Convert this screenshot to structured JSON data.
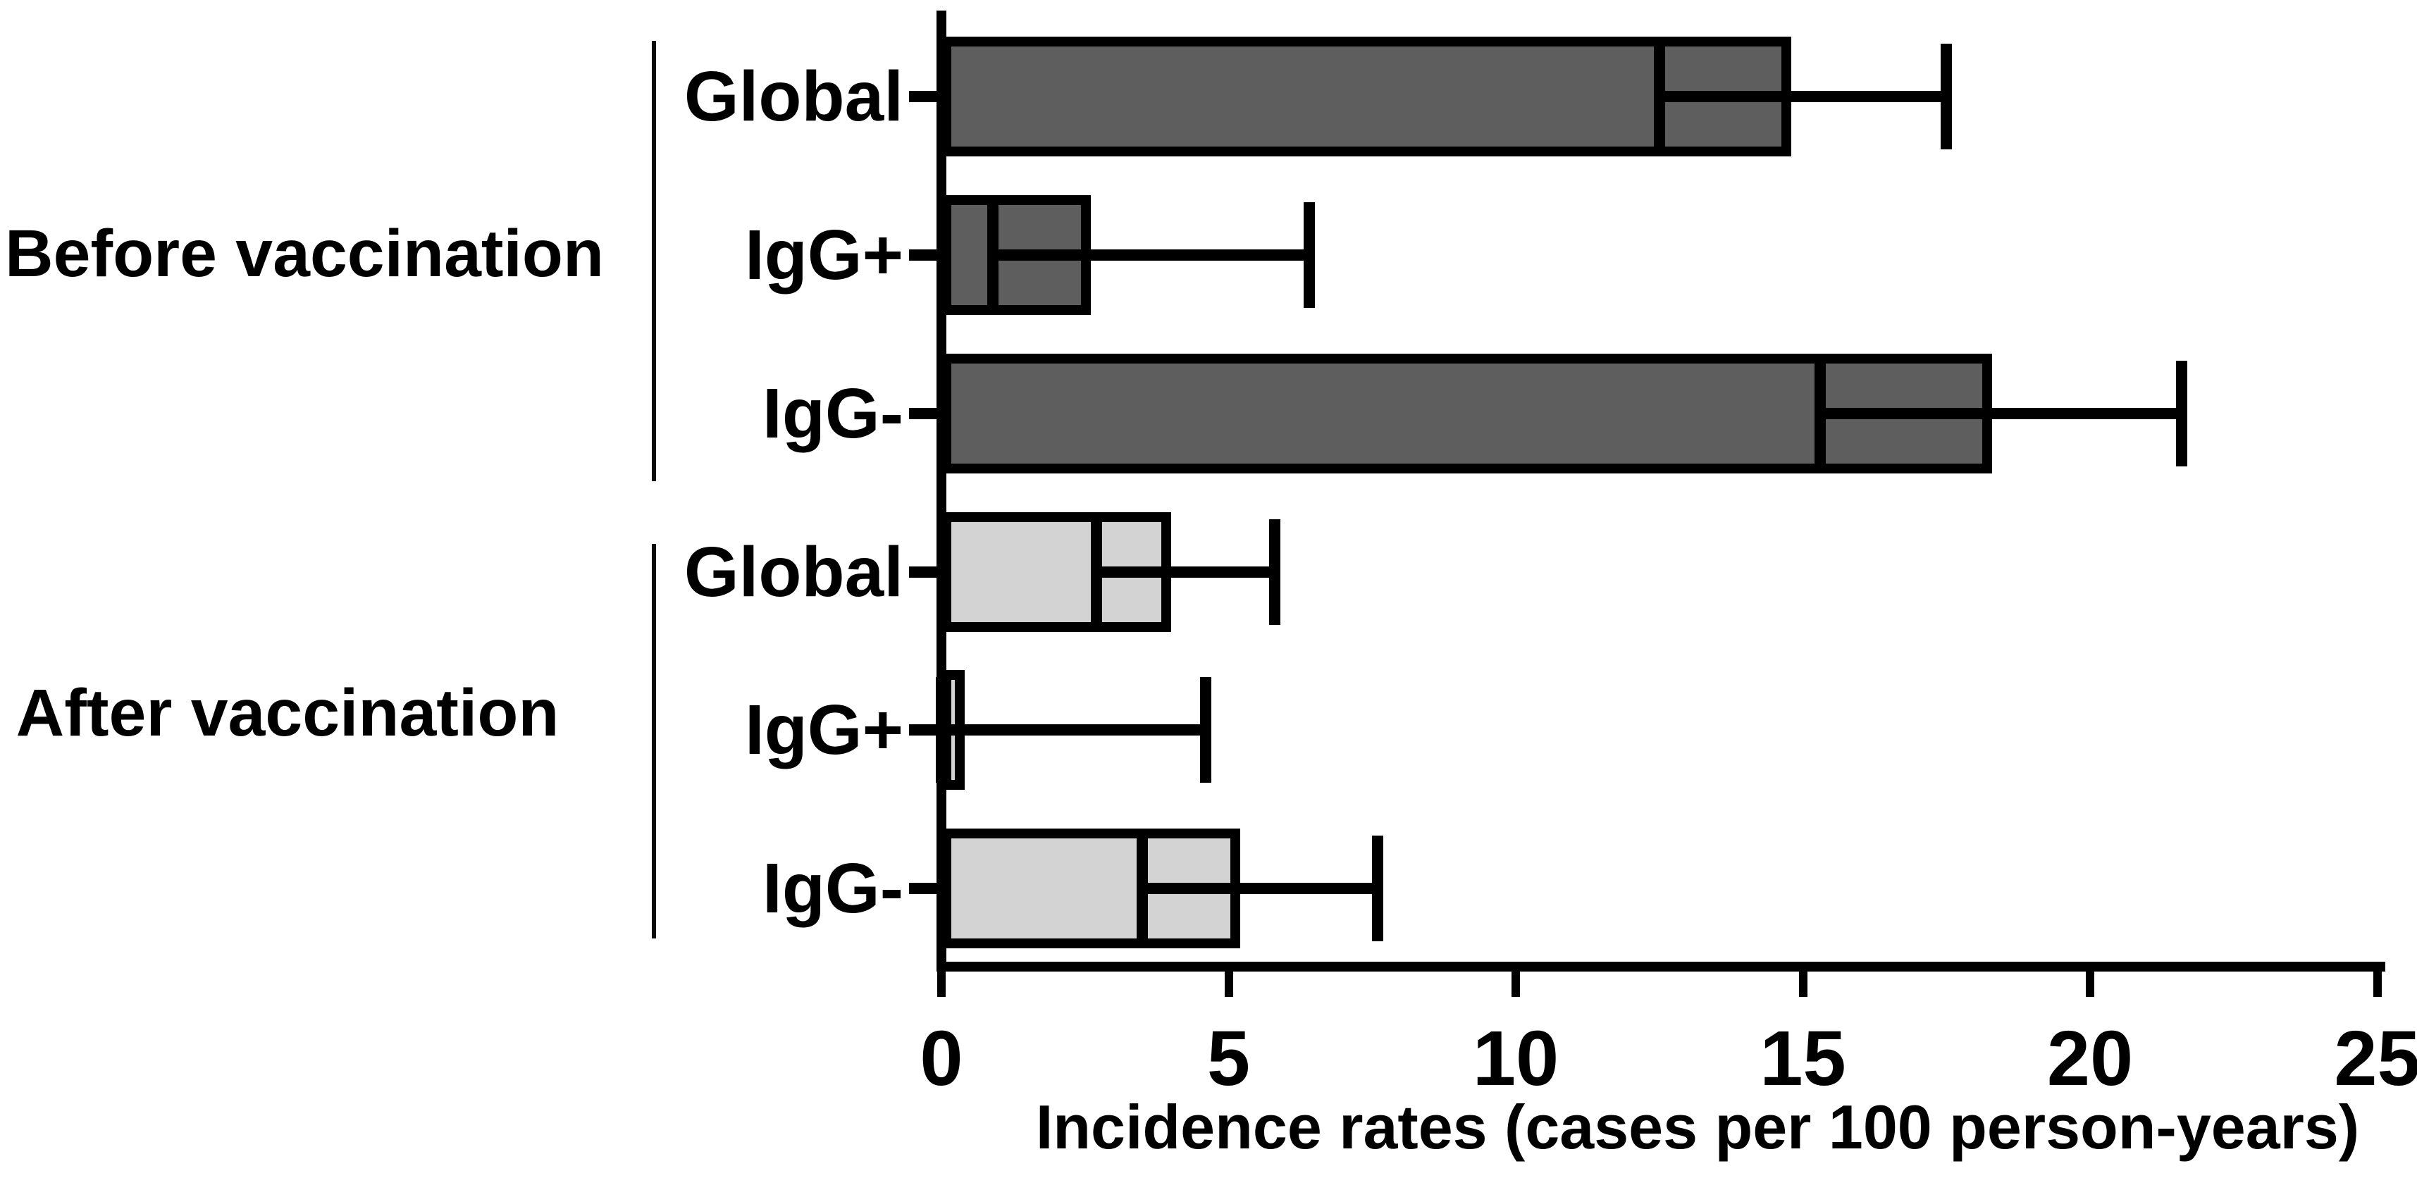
{
  "chart_data": {
    "type": "bar",
    "orientation": "horizontal",
    "xlabel": "Incidence rates (cases per 100 person-years)",
    "xlim": [
      0,
      25
    ],
    "x_ticks": [
      0,
      5,
      10,
      15,
      20,
      25
    ],
    "x_tick_labels": [
      "0",
      "5",
      "10",
      "15",
      "20",
      "25"
    ],
    "grid": false,
    "legend": "none",
    "error_bars": "95% CI whiskers with caps",
    "groups": [
      {
        "label": "Before vaccination",
        "bar_fill": "#5E5E5F",
        "bars": [
          {
            "category": "Global",
            "value": 14.8,
            "ci_low": 12.5,
            "ci_high": 17.5
          },
          {
            "category": "IgG+",
            "value": 2.6,
            "ci_low": 0.9,
            "ci_high": 6.4
          },
          {
            "category": "IgG-",
            "value": 18.3,
            "ci_low": 15.3,
            "ci_high": 21.6
          }
        ]
      },
      {
        "label": "After vaccination",
        "bar_fill": "#D3D3D3",
        "bars": [
          {
            "category": "Global",
            "value": 4.0,
            "ci_low": 2.7,
            "ci_high": 5.8
          },
          {
            "category": "IgG+",
            "value": 0.4,
            "ci_low": 0.0,
            "ci_high": 4.6
          },
          {
            "category": "IgG-",
            "value": 5.2,
            "ci_low": 3.5,
            "ci_high": 7.6
          }
        ]
      }
    ],
    "colors": {
      "axis": "#000000",
      "bar_border": "#000000",
      "before_fill": "#5E5E5F",
      "after_fill": "#D3D3D3",
      "background": "#FFFFFF"
    }
  }
}
